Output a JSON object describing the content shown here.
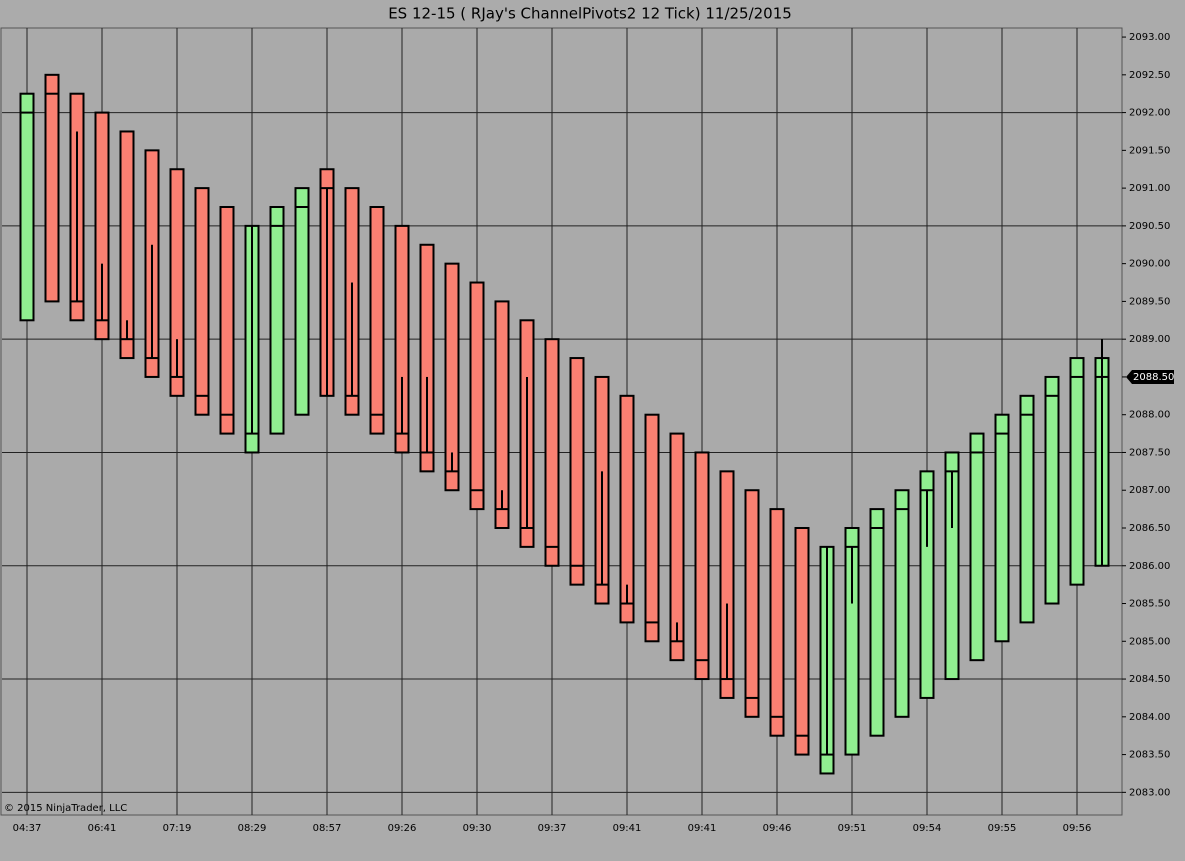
{
  "chart_data": {
    "type": "range_bar",
    "title": "ES 12-15 ( RJay's ChannelPivots2  12 Tick)  11/25/2015",
    "copyright": "© 2015 NinjaTrader, LLC",
    "categories": [
      "04:37",
      null,
      null,
      "06:41",
      null,
      null,
      "07:19",
      null,
      null,
      "08:29",
      null,
      null,
      "08:57",
      null,
      null,
      "09:26",
      null,
      null,
      "09:30",
      null,
      null,
      "09:37",
      null,
      null,
      "09:41",
      null,
      null,
      "09:41",
      null,
      null,
      "09:46",
      null,
      null,
      "09:51",
      null,
      null,
      "09:54",
      null,
      null,
      "09:55",
      null,
      null,
      "09:56",
      null
    ],
    "high": [
      2092.25,
      2092.5,
      2092.25,
      2092.0,
      2091.75,
      2091.5,
      2091.25,
      2091.0,
      2090.75,
      2090.5,
      2090.75,
      2091.0,
      2091.25,
      2091.0,
      2090.75,
      2090.5,
      2090.25,
      2090.0,
      2089.75,
      2089.5,
      2089.25,
      2089.0,
      2088.75,
      2088.5,
      2088.25,
      2088.0,
      2087.75,
      2087.5,
      2087.25,
      2087.0,
      2086.75,
      2086.5,
      2086.25,
      2086.5,
      2086.75,
      2087.0,
      2087.25,
      2087.5,
      2087.75,
      2088.0,
      2088.25,
      2088.5,
      2088.75,
      2088.75
    ],
    "low": [
      2089.25,
      2089.5,
      2089.25,
      2089.0,
      2088.75,
      2088.5,
      2088.25,
      2088.0,
      2087.75,
      2087.5,
      2087.75,
      2088.0,
      2088.25,
      2088.0,
      2087.75,
      2087.5,
      2087.25,
      2087.0,
      2086.75,
      2086.5,
      2086.25,
      2086.0,
      2085.75,
      2085.5,
      2085.25,
      2085.0,
      2084.75,
      2084.5,
      2084.25,
      2084.0,
      2083.75,
      2083.5,
      2083.25,
      2083.5,
      2083.75,
      2084.0,
      2084.25,
      2084.5,
      2084.75,
      2085.0,
      2085.25,
      2085.5,
      2085.75,
      2086.0
    ],
    "mark": [
      2092.0,
      2092.25,
      2089.5,
      2089.25,
      2089.0,
      2088.75,
      2088.5,
      2088.25,
      2088.0,
      2087.75,
      2090.5,
      2090.75,
      2091.0,
      2088.25,
      2088.0,
      2087.75,
      2087.5,
      2087.25,
      2087.0,
      2086.75,
      2086.5,
      2086.25,
      2086.0,
      2085.75,
      2085.5,
      2085.25,
      2085.0,
      2084.75,
      2084.5,
      2084.25,
      2084.0,
      2083.75,
      2083.5,
      2086.25,
      2086.5,
      2086.75,
      2087.0,
      2087.25,
      2087.5,
      2087.75,
      2088.0,
      2088.25,
      2088.5,
      2088.5
    ],
    "wick_top": [
      null,
      null,
      2091.75,
      2090.0,
      2089.25,
      2090.25,
      2089.0,
      null,
      null,
      2090.5,
      null,
      null,
      2091.0,
      2089.75,
      null,
      2088.5,
      2088.5,
      2087.5,
      null,
      2087.0,
      2088.5,
      null,
      null,
      2087.25,
      2085.75,
      null,
      2085.25,
      null,
      2085.5,
      null,
      null,
      null,
      2086.25,
      2086.25,
      null,
      null,
      2087.0,
      2087.25,
      null,
      null,
      null,
      null,
      null,
      2089.0
    ],
    "wick_bottom": [
      null,
      null,
      2089.5,
      2089.25,
      2089.0,
      2088.75,
      2088.5,
      null,
      null,
      2087.75,
      null,
      null,
      2088.25,
      2088.25,
      null,
      2087.75,
      2087.5,
      2087.25,
      null,
      2086.75,
      2086.5,
      null,
      null,
      2085.75,
      2085.5,
      null,
      2085.0,
      null,
      2084.5,
      null,
      null,
      null,
      2083.5,
      2085.5,
      null,
      null,
      2086.25,
      2086.5,
      null,
      null,
      null,
      null,
      null,
      2086.0
    ],
    "colors": [
      "#90ee90",
      "#fa8072",
      "#fa8072",
      "#fa8072",
      "#fa8072",
      "#fa8072",
      "#fa8072",
      "#fa8072",
      "#fa8072",
      "#90ee90",
      "#90ee90",
      "#90ee90",
      "#fa8072",
      "#fa8072",
      "#fa8072",
      "#fa8072",
      "#fa8072",
      "#fa8072",
      "#fa8072",
      "#fa8072",
      "#fa8072",
      "#fa8072",
      "#fa8072",
      "#fa8072",
      "#fa8072",
      "#fa8072",
      "#fa8072",
      "#fa8072",
      "#fa8072",
      "#fa8072",
      "#fa8072",
      "#fa8072",
      "#90ee90",
      "#90ee90",
      "#90ee90",
      "#90ee90",
      "#90ee90",
      "#90ee90",
      "#90ee90",
      "#90ee90",
      "#90ee90",
      "#90ee90",
      "#90ee90",
      "#90ee90"
    ],
    "ylim": [
      2082.7,
      2093.12
    ],
    "yticks": [
      {
        "value": 2083,
        "label": "2083.00"
      },
      {
        "value": 2083.5,
        "label": "2083.50"
      },
      {
        "value": 2084,
        "label": "2084.00"
      },
      {
        "value": 2084.5,
        "label": "2084.50"
      },
      {
        "value": 2085,
        "label": "2085.00"
      },
      {
        "value": 2085.5,
        "label": "2085.50"
      },
      {
        "value": 2086,
        "label": "2086.00"
      },
      {
        "value": 2086.5,
        "label": "2086.50"
      },
      {
        "value": 2087,
        "label": "2087.00"
      },
      {
        "value": 2087.5,
        "label": "2087.50"
      },
      {
        "value": 2088,
        "label": "2088.00"
      },
      {
        "value": 2088.5,
        "label": "2088.50"
      },
      {
        "value": 2089,
        "label": "2089.00"
      },
      {
        "value": 2089.5,
        "label": "2089.50"
      },
      {
        "value": 2090,
        "label": "2090.00"
      },
      {
        "value": 2090.5,
        "label": "2090.50"
      },
      {
        "value": 2091,
        "label": "2091.00"
      },
      {
        "value": 2091.5,
        "label": "2091.50"
      },
      {
        "value": 2092,
        "label": "2092.00"
      },
      {
        "value": 2092.5,
        "label": "2092.50"
      },
      {
        "value": 2093,
        "label": "2093.00"
      }
    ],
    "ygrid": [
      2083,
      2084.5,
      2086,
      2087.5,
      2089,
      2090.5,
      2092
    ],
    "last_price": {
      "value": 2088.5,
      "label": "2088.50"
    }
  }
}
